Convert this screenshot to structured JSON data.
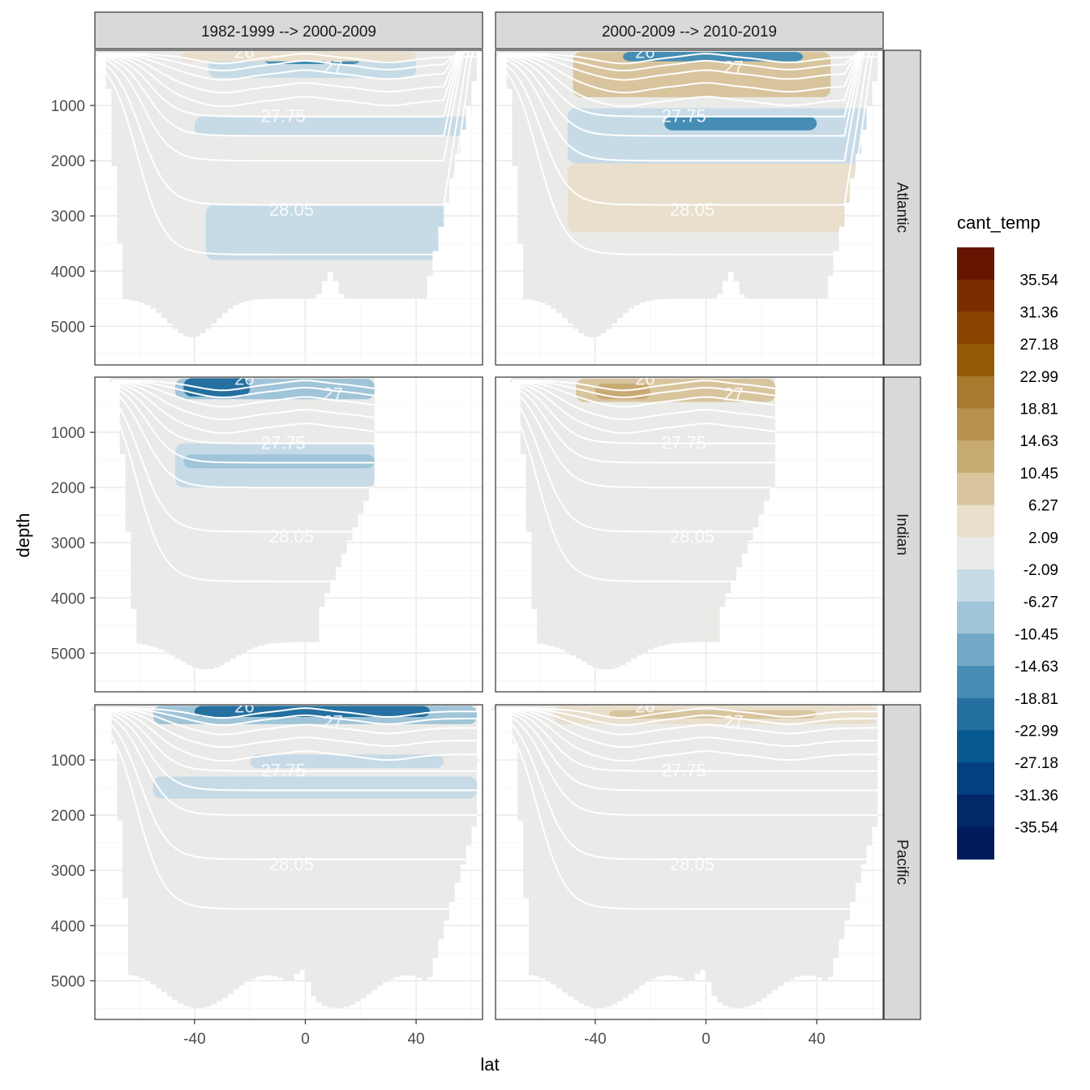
{
  "chart_data": {
    "type": "heatmap",
    "title": "",
    "xlabel": "lat",
    "ylabel": "depth",
    "x_ticks": [
      -40,
      0,
      40
    ],
    "y_ticks": [
      1000,
      2000,
      3000,
      4000,
      5000
    ],
    "xlim": [
      -76,
      64
    ],
    "ylim": [
      5700,
      0
    ],
    "columns": [
      "1982-1999 --> 2000-2009",
      "2000-2009 --> 2010-2019"
    ],
    "rows": [
      "Atlantic",
      "Indian",
      "Pacific"
    ],
    "legend": {
      "title": "cant_temp",
      "position": "right",
      "labels": [
        "35.54",
        "31.36",
        "27.18",
        "22.99",
        "18.81",
        "14.63",
        "10.45",
        "6.27",
        "2.09",
        "-2.09",
        "-6.27",
        "-10.45",
        "-14.63",
        "-18.81",
        "-22.99",
        "-27.18",
        "-31.36",
        "-35.54"
      ],
      "colors": [
        "#661500",
        "#7a2e00",
        "#8a4600",
        "#935b05",
        "#a87a2e",
        "#b8914f",
        "#c8ab73",
        "#d8c59e",
        "#e9dfcc",
        "#eaebe8",
        "#c7dbe7",
        "#a0c4d8",
        "#71a9c7",
        "#458db5",
        "#2470a0",
        "#06598f",
        "#043f80",
        "#02286a",
        "#011b5c"
      ]
    },
    "isopycnal_labels": [
      "26",
      "27",
      "27.75",
      "28.05"
    ],
    "panels": [
      {
        "column": 0,
        "row": 0,
        "max_depth": 5600,
        "lat_range": [
          -75,
          62
        ],
        "bands": [
          {
            "lat": [
              -35,
              40
            ],
            "depth": [
              100,
              500
            ],
            "value": -4
          },
          {
            "lat": [
              -15,
              20
            ],
            "depth": [
              50,
              250
            ],
            "value": -17
          },
          {
            "lat": [
              -45,
              40
            ],
            "depth": [
              30,
              200
            ],
            "value": 4
          },
          {
            "lat": [
              -40,
              62
            ],
            "depth": [
              1200,
              1550
            ],
            "value": -4
          },
          {
            "lat": [
              -36,
              52
            ],
            "depth": [
              2800,
              3800
            ],
            "value": -4
          }
        ]
      },
      {
        "column": 1,
        "row": 0,
        "max_depth": 5600,
        "lat_range": [
          -75,
          62
        ],
        "bands": [
          {
            "lat": [
              -48,
              45
            ],
            "depth": [
              30,
              850
            ],
            "value": 8
          },
          {
            "lat": [
              -30,
              35
            ],
            "depth": [
              30,
              200
            ],
            "value": -15
          },
          {
            "lat": [
              -50,
              60
            ],
            "depth": [
              1050,
              2050
            ],
            "value": -4
          },
          {
            "lat": [
              -15,
              40
            ],
            "depth": [
              1200,
              1450
            ],
            "value": -17
          },
          {
            "lat": [
              -50,
              62
            ],
            "depth": [
              2050,
              3300
            ],
            "value": 4
          }
        ]
      },
      {
        "column": 0,
        "row": 1,
        "max_depth": 5600,
        "lat_range": [
          -70,
          25
        ],
        "bands": [
          {
            "lat": [
              -47,
              25
            ],
            "depth": [
              30,
              400
            ],
            "value": -8
          },
          {
            "lat": [
              -44,
              -20
            ],
            "depth": [
              20,
              350
            ],
            "value": -20
          },
          {
            "lat": [
              -47,
              25
            ],
            "depth": [
              1200,
              2000
            ],
            "value": -4
          },
          {
            "lat": [
              -44,
              25
            ],
            "depth": [
              1400,
              1650
            ],
            "value": -8
          }
        ]
      },
      {
        "column": 1,
        "row": 1,
        "max_depth": 5600,
        "lat_range": [
          -70,
          25
        ],
        "bands": [
          {
            "lat": [
              -47,
              25
            ],
            "depth": [
              30,
              450
            ],
            "value": 7
          },
          {
            "lat": [
              -40,
              -20
            ],
            "depth": [
              120,
              400
            ],
            "value": 14
          }
        ]
      },
      {
        "column": 0,
        "row": 2,
        "max_depth": 5600,
        "lat_range": [
          -76,
          62
        ],
        "bands": [
          {
            "lat": [
              -55,
              62
            ],
            "depth": [
              20,
              350
            ],
            "value": -7
          },
          {
            "lat": [
              -40,
              45
            ],
            "depth": [
              20,
              220
            ],
            "value": -20
          },
          {
            "lat": [
              -20,
              50
            ],
            "depth": [
              900,
              1150
            ],
            "value": -4
          },
          {
            "lat": [
              -55,
              62
            ],
            "depth": [
              1300,
              1700
            ],
            "value": -4
          }
        ]
      },
      {
        "column": 1,
        "row": 2,
        "max_depth": 5600,
        "lat_range": [
          -76,
          62
        ],
        "bands": [
          {
            "lat": [
              -55,
              62
            ],
            "depth": [
              20,
              350
            ],
            "value": 4
          },
          {
            "lat": [
              -35,
              40
            ],
            "depth": [
              100,
              250
            ],
            "value": 10
          }
        ]
      }
    ]
  }
}
